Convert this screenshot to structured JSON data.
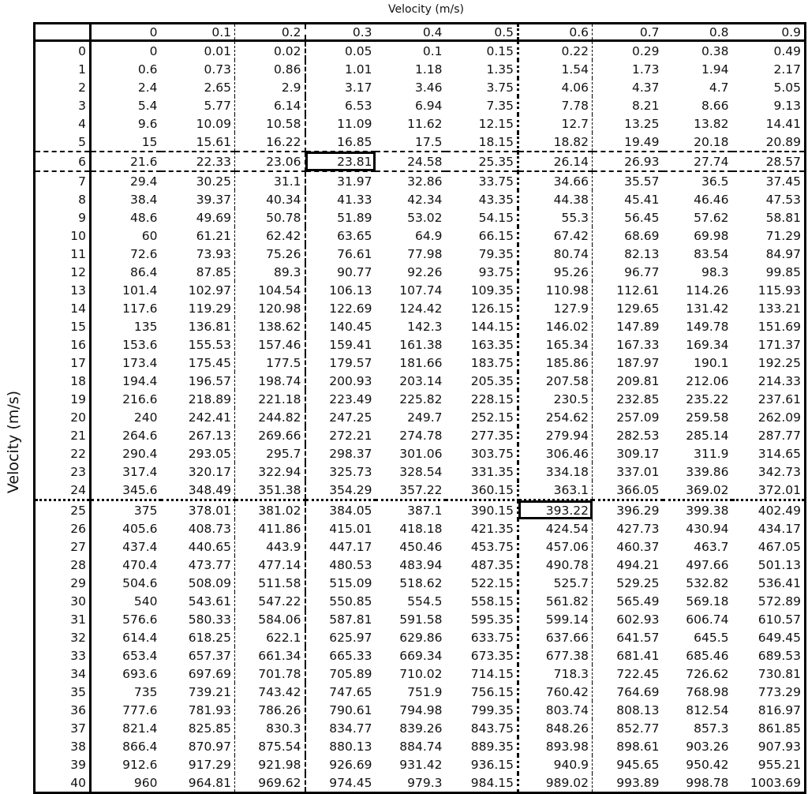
{
  "column_axis_label": "Velocity (m/s)",
  "row_axis_label": "Velocity (m/s)",
  "table": {
    "column_headers": [
      "0",
      "0.1",
      "0.2",
      "0.3",
      "0.4",
      "0.5",
      "0.6",
      "0.7",
      "0.8",
      "0.9"
    ],
    "highlighted_cells": [
      {
        "row": "6",
        "column": "0.3"
      },
      {
        "row": "25",
        "column": "0.6"
      }
    ],
    "rows": [
      {
        "label": "0",
        "values": [
          "0",
          "0.01",
          "0.02",
          "0.05",
          "0.1",
          "0.15",
          "0.22",
          "0.29",
          "0.38",
          "0.49"
        ]
      },
      {
        "label": "1",
        "values": [
          "0.6",
          "0.73",
          "0.86",
          "1.01",
          "1.18",
          "1.35",
          "1.54",
          "1.73",
          "1.94",
          "2.17"
        ]
      },
      {
        "label": "2",
        "values": [
          "2.4",
          "2.65",
          "2.9",
          "3.17",
          "3.46",
          "3.75",
          "4.06",
          "4.37",
          "4.7",
          "5.05"
        ]
      },
      {
        "label": "3",
        "values": [
          "5.4",
          "5.77",
          "6.14",
          "6.53",
          "6.94",
          "7.35",
          "7.78",
          "8.21",
          "8.66",
          "9.13"
        ]
      },
      {
        "label": "4",
        "values": [
          "9.6",
          "10.09",
          "10.58",
          "11.09",
          "11.62",
          "12.15",
          "12.7",
          "13.25",
          "13.82",
          "14.41"
        ]
      },
      {
        "label": "5",
        "values": [
          "15",
          "15.61",
          "16.22",
          "16.85",
          "17.5",
          "18.15",
          "18.82",
          "19.49",
          "20.18",
          "20.89"
        ]
      },
      {
        "label": "6",
        "values": [
          "21.6",
          "22.33",
          "23.06",
          "23.81",
          "24.58",
          "25.35",
          "26.14",
          "26.93",
          "27.74",
          "28.57"
        ]
      },
      {
        "label": "7",
        "values": [
          "29.4",
          "30.25",
          "31.1",
          "31.97",
          "32.86",
          "33.75",
          "34.66",
          "35.57",
          "36.5",
          "37.45"
        ]
      },
      {
        "label": "8",
        "values": [
          "38.4",
          "39.37",
          "40.34",
          "41.33",
          "42.34",
          "43.35",
          "44.38",
          "45.41",
          "46.46",
          "47.53"
        ]
      },
      {
        "label": "9",
        "values": [
          "48.6",
          "49.69",
          "50.78",
          "51.89",
          "53.02",
          "54.15",
          "55.3",
          "56.45",
          "57.62",
          "58.81"
        ]
      },
      {
        "label": "10",
        "values": [
          "60",
          "61.21",
          "62.42",
          "63.65",
          "64.9",
          "66.15",
          "67.42",
          "68.69",
          "69.98",
          "71.29"
        ]
      },
      {
        "label": "11",
        "values": [
          "72.6",
          "73.93",
          "75.26",
          "76.61",
          "77.98",
          "79.35",
          "80.74",
          "82.13",
          "83.54",
          "84.97"
        ]
      },
      {
        "label": "12",
        "values": [
          "86.4",
          "87.85",
          "89.3",
          "90.77",
          "92.26",
          "93.75",
          "95.26",
          "96.77",
          "98.3",
          "99.85"
        ]
      },
      {
        "label": "13",
        "values": [
          "101.4",
          "102.97",
          "104.54",
          "106.13",
          "107.74",
          "109.35",
          "110.98",
          "112.61",
          "114.26",
          "115.93"
        ]
      },
      {
        "label": "14",
        "values": [
          "117.6",
          "119.29",
          "120.98",
          "122.69",
          "124.42",
          "126.15",
          "127.9",
          "129.65",
          "131.42",
          "133.21"
        ]
      },
      {
        "label": "15",
        "values": [
          "135",
          "136.81",
          "138.62",
          "140.45",
          "142.3",
          "144.15",
          "146.02",
          "147.89",
          "149.78",
          "151.69"
        ]
      },
      {
        "label": "16",
        "values": [
          "153.6",
          "155.53",
          "157.46",
          "159.41",
          "161.38",
          "163.35",
          "165.34",
          "167.33",
          "169.34",
          "171.37"
        ]
      },
      {
        "label": "17",
        "values": [
          "173.4",
          "175.45",
          "177.5",
          "179.57",
          "181.66",
          "183.75",
          "185.86",
          "187.97",
          "190.1",
          "192.25"
        ]
      },
      {
        "label": "18",
        "values": [
          "194.4",
          "196.57",
          "198.74",
          "200.93",
          "203.14",
          "205.35",
          "207.58",
          "209.81",
          "212.06",
          "214.33"
        ]
      },
      {
        "label": "19",
        "values": [
          "216.6",
          "218.89",
          "221.18",
          "223.49",
          "225.82",
          "228.15",
          "230.5",
          "232.85",
          "235.22",
          "237.61"
        ]
      },
      {
        "label": "20",
        "values": [
          "240",
          "242.41",
          "244.82",
          "247.25",
          "249.7",
          "252.15",
          "254.62",
          "257.09",
          "259.58",
          "262.09"
        ]
      },
      {
        "label": "21",
        "values": [
          "264.6",
          "267.13",
          "269.66",
          "272.21",
          "274.78",
          "277.35",
          "279.94",
          "282.53",
          "285.14",
          "287.77"
        ]
      },
      {
        "label": "22",
        "values": [
          "290.4",
          "293.05",
          "295.7",
          "298.37",
          "301.06",
          "303.75",
          "306.46",
          "309.17",
          "311.9",
          "314.65"
        ]
      },
      {
        "label": "23",
        "values": [
          "317.4",
          "320.17",
          "322.94",
          "325.73",
          "328.54",
          "331.35",
          "334.18",
          "337.01",
          "339.86",
          "342.73"
        ]
      },
      {
        "label": "24",
        "values": [
          "345.6",
          "348.49",
          "351.38",
          "354.29",
          "357.22",
          "360.15",
          "363.1",
          "366.05",
          "369.02",
          "372.01"
        ]
      },
      {
        "label": "25",
        "values": [
          "375",
          "378.01",
          "381.02",
          "384.05",
          "387.1",
          "390.15",
          "393.22",
          "396.29",
          "399.38",
          "402.49"
        ]
      },
      {
        "label": "26",
        "values": [
          "405.6",
          "408.73",
          "411.86",
          "415.01",
          "418.18",
          "421.35",
          "424.54",
          "427.73",
          "430.94",
          "434.17"
        ]
      },
      {
        "label": "27",
        "values": [
          "437.4",
          "440.65",
          "443.9",
          "447.17",
          "450.46",
          "453.75",
          "457.06",
          "460.37",
          "463.7",
          "467.05"
        ]
      },
      {
        "label": "28",
        "values": [
          "470.4",
          "473.77",
          "477.14",
          "480.53",
          "483.94",
          "487.35",
          "490.78",
          "494.21",
          "497.66",
          "501.13"
        ]
      },
      {
        "label": "29",
        "values": [
          "504.6",
          "508.09",
          "511.58",
          "515.09",
          "518.62",
          "522.15",
          "525.7",
          "529.25",
          "532.82",
          "536.41"
        ]
      },
      {
        "label": "30",
        "values": [
          "540",
          "543.61",
          "547.22",
          "550.85",
          "554.5",
          "558.15",
          "561.82",
          "565.49",
          "569.18",
          "572.89"
        ]
      },
      {
        "label": "31",
        "values": [
          "576.6",
          "580.33",
          "584.06",
          "587.81",
          "591.58",
          "595.35",
          "599.14",
          "602.93",
          "606.74",
          "610.57"
        ]
      },
      {
        "label": "32",
        "values": [
          "614.4",
          "618.25",
          "622.1",
          "625.97",
          "629.86",
          "633.75",
          "637.66",
          "641.57",
          "645.5",
          "649.45"
        ]
      },
      {
        "label": "33",
        "values": [
          "653.4",
          "657.37",
          "661.34",
          "665.33",
          "669.34",
          "673.35",
          "677.38",
          "681.41",
          "685.46",
          "689.53"
        ]
      },
      {
        "label": "34",
        "values": [
          "693.6",
          "697.69",
          "701.78",
          "705.89",
          "710.02",
          "714.15",
          "718.3",
          "722.45",
          "726.62",
          "730.81"
        ]
      },
      {
        "label": "35",
        "values": [
          "735",
          "739.21",
          "743.42",
          "747.65",
          "751.9",
          "756.15",
          "760.42",
          "764.69",
          "768.98",
          "773.29"
        ]
      },
      {
        "label": "36",
        "values": [
          "777.6",
          "781.93",
          "786.26",
          "790.61",
          "794.98",
          "799.35",
          "803.74",
          "808.13",
          "812.54",
          "816.97"
        ]
      },
      {
        "label": "37",
        "values": [
          "821.4",
          "825.85",
          "830.3",
          "834.77",
          "839.26",
          "843.75",
          "848.26",
          "852.77",
          "857.3",
          "861.85"
        ]
      },
      {
        "label": "38",
        "values": [
          "866.4",
          "870.97",
          "875.54",
          "880.13",
          "884.74",
          "889.35",
          "893.98",
          "898.61",
          "903.26",
          "907.93"
        ]
      },
      {
        "label": "39",
        "values": [
          "912.6",
          "917.29",
          "921.98",
          "926.69",
          "931.42",
          "936.15",
          "940.9",
          "945.65",
          "950.42",
          "955.21"
        ]
      },
      {
        "label": "40",
        "values": [
          "960",
          "964.81",
          "969.62",
          "974.45",
          "979.3",
          "984.15",
          "989.02",
          "993.89",
          "998.78",
          "1003.69"
        ]
      }
    ]
  }
}
